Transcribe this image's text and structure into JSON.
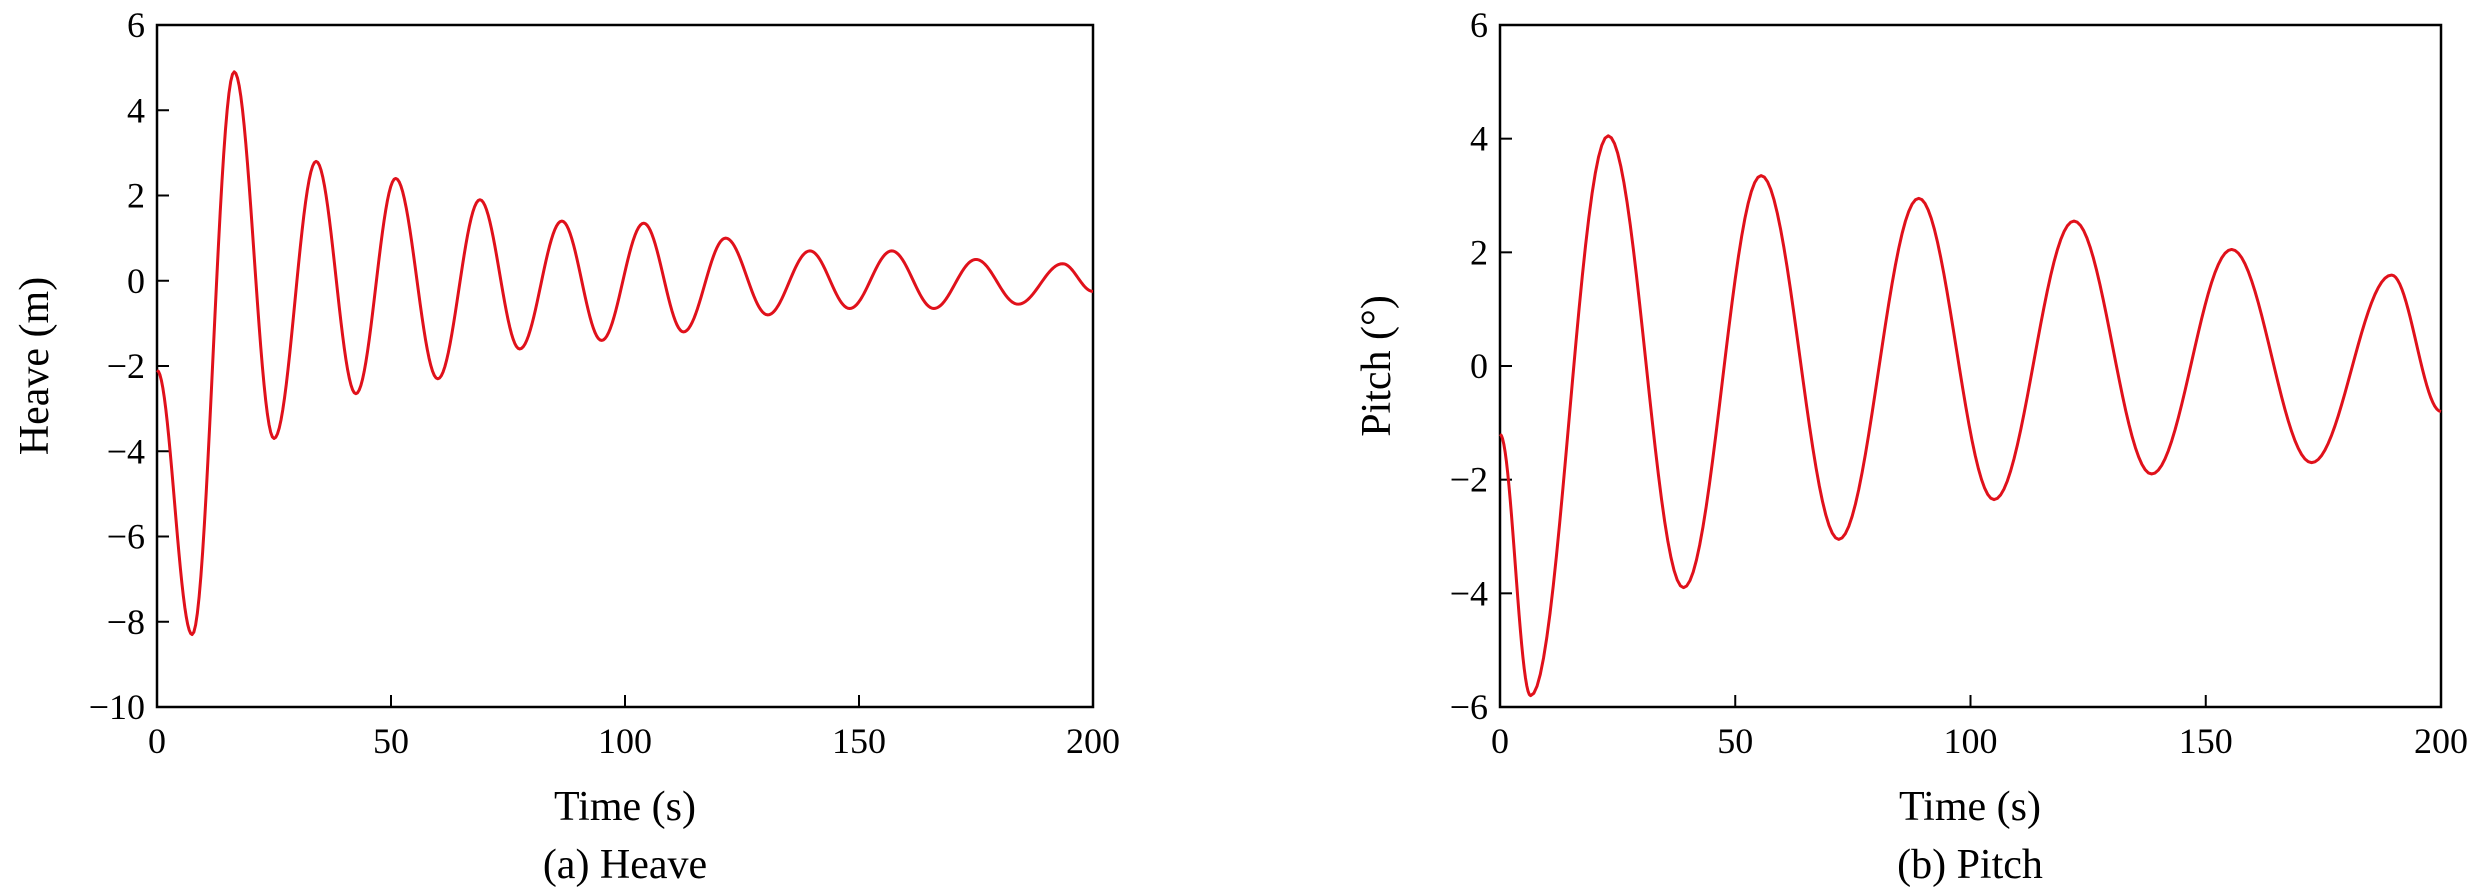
{
  "chart_data": [
    {
      "type": "line",
      "title": "",
      "caption": "(a) Heave",
      "xlabel": "Time (s)",
      "ylabel": "Heave (m)",
      "xlim": [
        0,
        200
      ],
      "ylim": [
        -10,
        6
      ],
      "xticks": [
        0,
        50,
        100,
        150,
        200
      ],
      "yticks": [
        6,
        4,
        2,
        0,
        -2,
        -4,
        -6,
        -8,
        -10
      ],
      "xtick_labels": [
        "0",
        "50",
        "100",
        "150",
        "200"
      ],
      "ytick_labels": [
        "6",
        "4",
        "2",
        "0",
        "−2",
        "−4",
        "−6",
        "−8",
        "−10"
      ],
      "grid": false,
      "series": [
        {
          "color": "#e0111b",
          "x": [
            0,
            7.5,
            16.5,
            25,
            34,
            42.5,
            51,
            60,
            69,
            77.5,
            86.5,
            95,
            104,
            112.5,
            121.5,
            130.5,
            139.5,
            148,
            157,
            166,
            175,
            184,
            193.5,
            200
          ],
          "y": [
            -2.1,
            -8.3,
            4.9,
            -3.7,
            2.8,
            -2.65,
            2.4,
            -2.3,
            1.9,
            -1.6,
            1.4,
            -1.4,
            1.35,
            -1.2,
            1.0,
            -0.8,
            0.7,
            -0.65,
            0.7,
            -0.65,
            0.5,
            -0.55,
            0.4,
            -0.25
          ]
        }
      ]
    },
    {
      "type": "line",
      "title": "",
      "caption": "(b) Pitch",
      "xlabel": "Time (s)",
      "ylabel": "Pitch (°)",
      "xlim": [
        0,
        200
      ],
      "ylim": [
        -6,
        6
      ],
      "xticks": [
        0,
        50,
        100,
        150,
        200
      ],
      "yticks": [
        6,
        4,
        2,
        0,
        -2,
        -4,
        -6
      ],
      "xtick_labels": [
        "0",
        "50",
        "100",
        "150",
        "200"
      ],
      "ytick_labels": [
        "6",
        "4",
        "2",
        "0",
        "−2",
        "−4",
        "−6"
      ],
      "grid": false,
      "series": [
        {
          "color": "#e0111b",
          "x": [
            0,
            6.5,
            23,
            39,
            55.5,
            72,
            89,
            105,
            122,
            138.5,
            155.5,
            172.5,
            189.5,
            200
          ],
          "y": [
            -1.2,
            -5.8,
            4.05,
            -3.9,
            3.35,
            -3.05,
            2.95,
            -2.35,
            2.55,
            -1.9,
            2.05,
            -1.7,
            1.6,
            -0.8
          ]
        }
      ]
    }
  ]
}
